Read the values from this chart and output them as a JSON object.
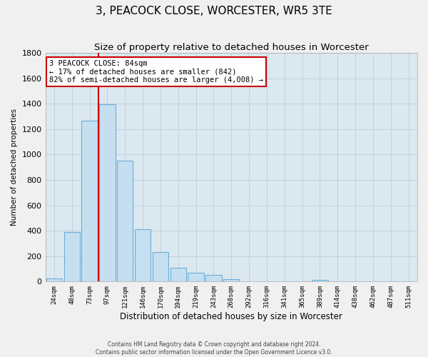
{
  "title": "3, PEACOCK CLOSE, WORCESTER, WR5 3TE",
  "subtitle": "Size of property relative to detached houses in Worcester",
  "xlabel": "Distribution of detached houses by size in Worcester",
  "ylabel": "Number of detached properties",
  "bar_labels": [
    "24sqm",
    "48sqm",
    "73sqm",
    "97sqm",
    "121sqm",
    "146sqm",
    "170sqm",
    "194sqm",
    "219sqm",
    "243sqm",
    "268sqm",
    "292sqm",
    "316sqm",
    "341sqm",
    "365sqm",
    "389sqm",
    "414sqm",
    "438sqm",
    "462sqm",
    "487sqm",
    "511sqm"
  ],
  "bar_values": [
    25,
    390,
    1265,
    1395,
    950,
    415,
    235,
    110,
    70,
    55,
    20,
    0,
    0,
    0,
    0,
    15,
    0,
    0,
    0,
    0,
    0
  ],
  "bar_color": "#c5dff0",
  "bar_edge_color": "#6aaed6",
  "ylim": [
    0,
    1800
  ],
  "yticks": [
    0,
    200,
    400,
    600,
    800,
    1000,
    1200,
    1400,
    1600,
    1800
  ],
  "vline_x": 2.5,
  "vline_color": "#cc0000",
  "annotation_title": "3 PEACOCK CLOSE: 84sqm",
  "annotation_line1": "← 17% of detached houses are smaller (842)",
  "annotation_line2": "82% of semi-detached houses are larger (4,008) →",
  "annotation_box_facecolor": "#ffffff",
  "annotation_box_edgecolor": "#cc0000",
  "footer_line1": "Contains HM Land Registry data © Crown copyright and database right 2024.",
  "footer_line2": "Contains public sector information licensed under the Open Government Licence v3.0.",
  "grid_color": "#c0d0e0",
  "fig_facecolor": "#f0f0f0",
  "ax_facecolor": "#dce8f0"
}
